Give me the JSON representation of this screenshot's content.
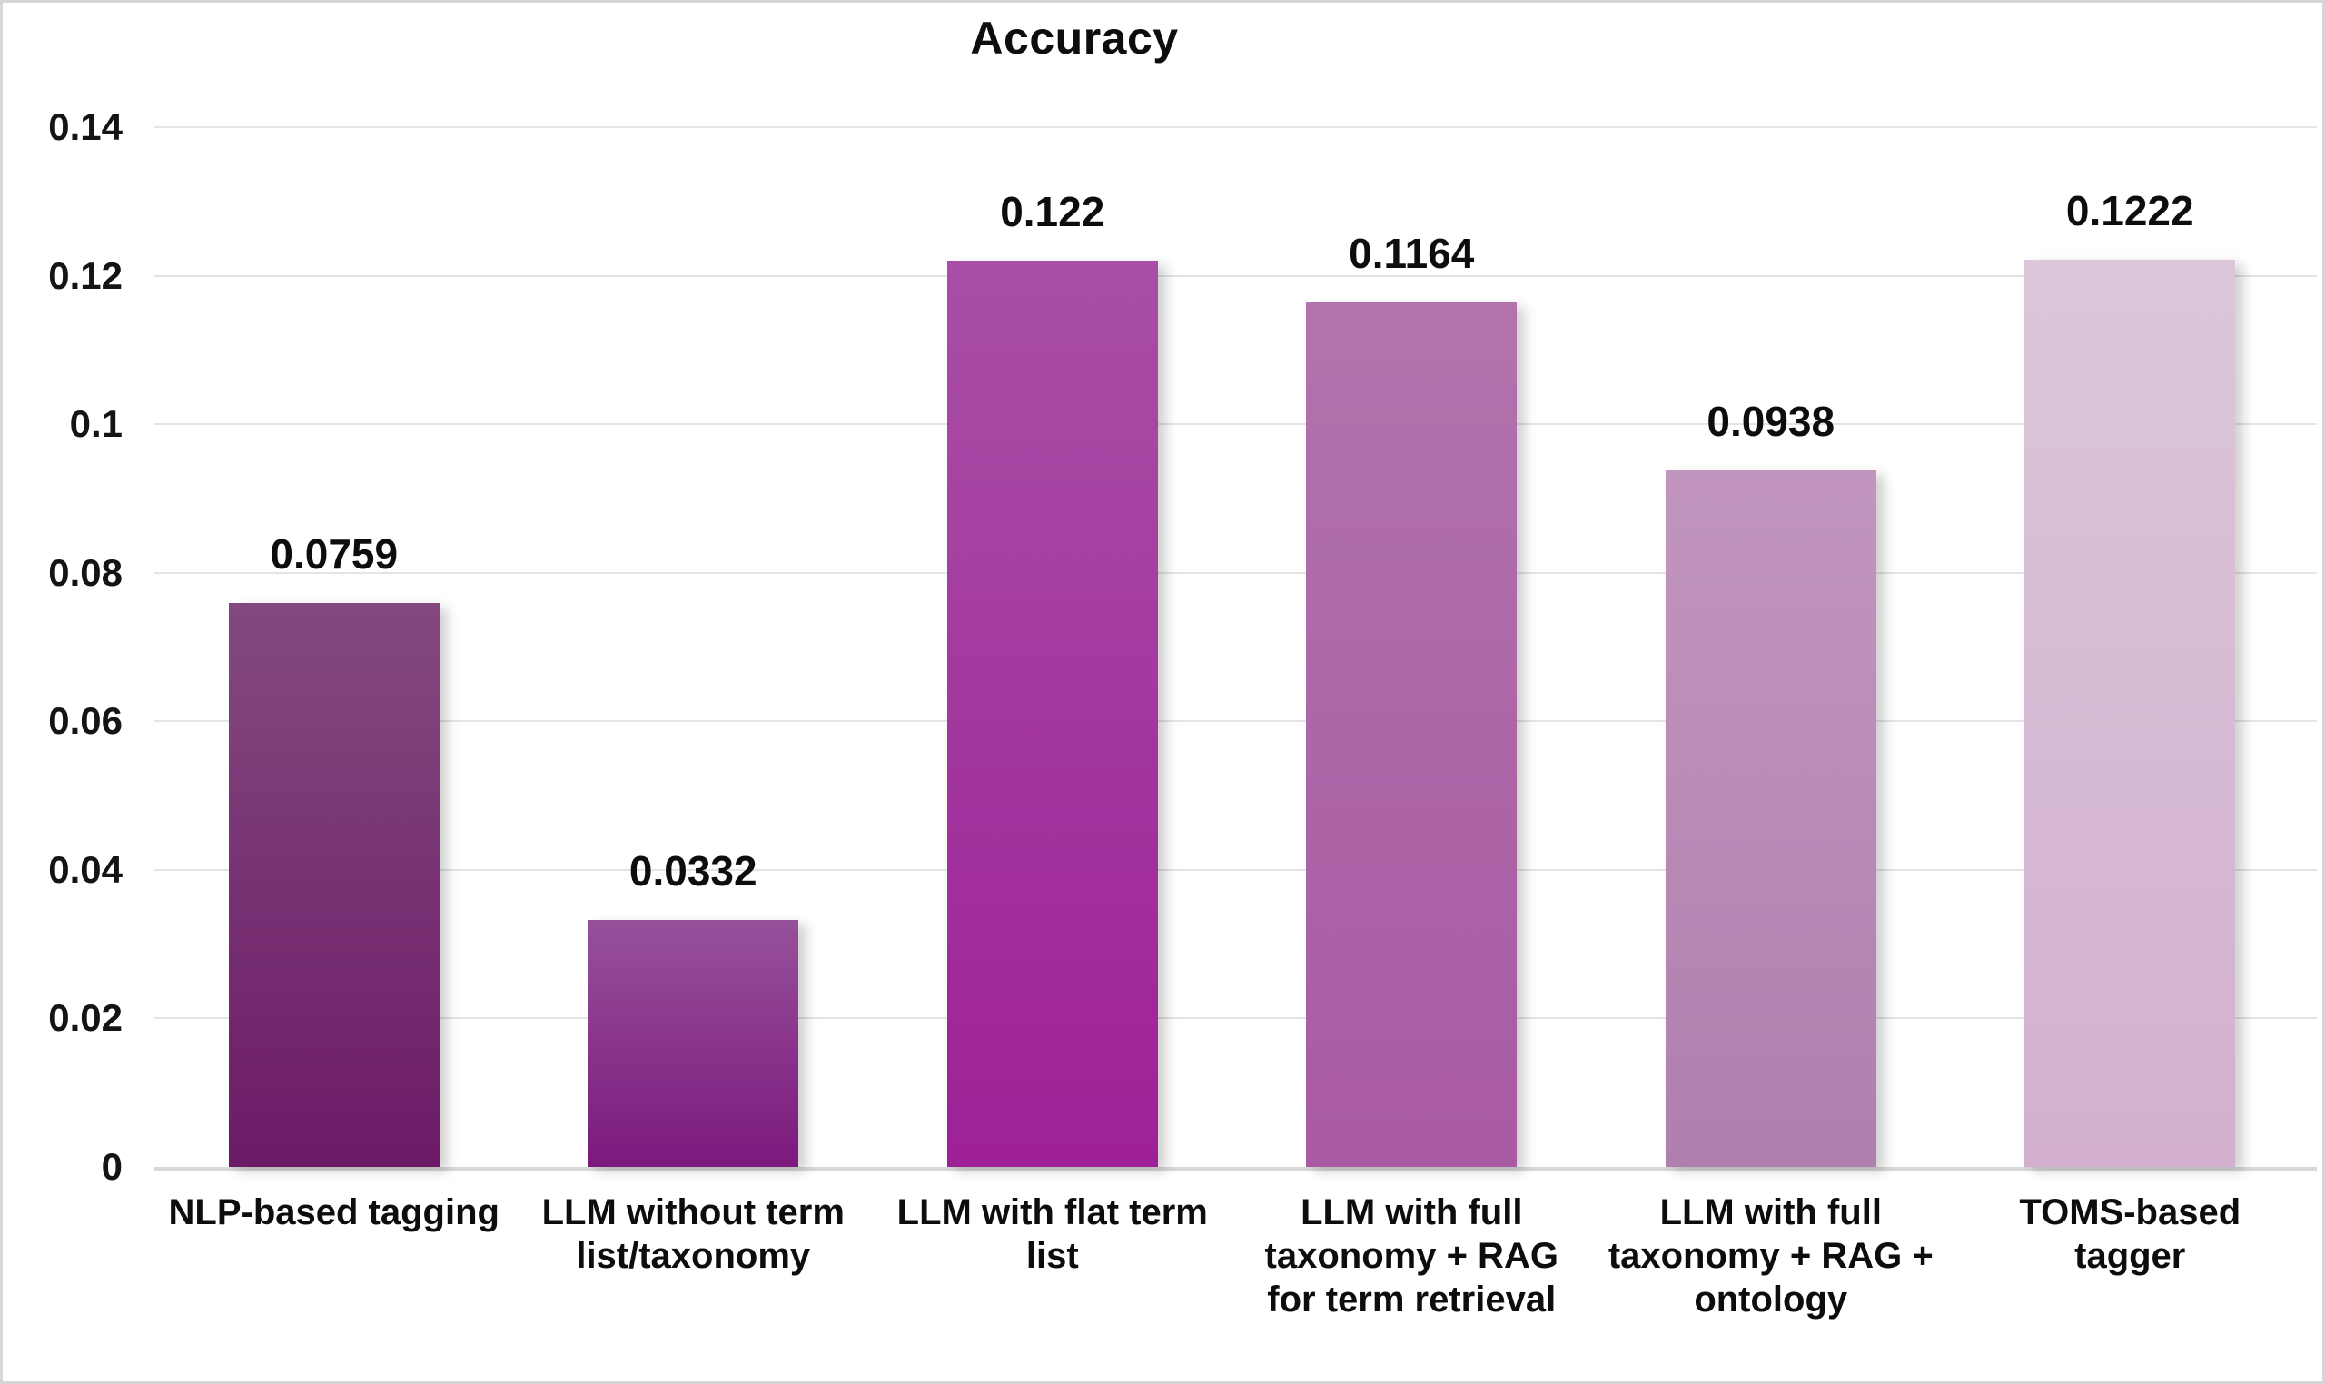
{
  "title": "Accuracy",
  "chart_data": {
    "type": "bar",
    "title": "Accuracy",
    "categories": [
      "NLP-based tagging",
      "LLM without term list/taxonomy",
      "LLM with flat term list",
      "LLM with full taxonomy + RAG for term retrieval",
      "LLM with full taxonomy + RAG + ontology",
      "TOMS-based tagger"
    ],
    "label_lines": [
      [
        "NLP-based tagging"
      ],
      [
        "LLM without term",
        "list/taxonomy"
      ],
      [
        "LLM with flat term",
        "list"
      ],
      [
        "LLM with full",
        "taxonomy + RAG",
        "for term retrieval"
      ],
      [
        "LLM with full",
        "taxonomy + RAG +",
        "ontology"
      ],
      [
        "TOMS-based",
        "tagger"
      ]
    ],
    "values": [
      0.0759,
      0.0332,
      0.122,
      0.1164,
      0.0938,
      0.1222
    ],
    "data_labels": [
      "0.0759",
      "0.0332",
      "0.122",
      "0.1164",
      "0.0938",
      "0.1222"
    ],
    "ylim": [
      0,
      0.14
    ],
    "yticks": [
      0,
      0.02,
      0.04,
      0.06,
      0.08,
      0.1,
      0.12,
      0.14
    ],
    "ytick_labels": [
      "0",
      "0.02",
      "0.04",
      "0.06",
      "0.08",
      "0.1",
      "0.12",
      "0.14"
    ],
    "xlabel": "",
    "ylabel": "",
    "grid": true,
    "legend": false,
    "bar_gradients": [
      {
        "top": "#83497F",
        "bottom": "#6C1B67"
      },
      {
        "top": "#96519B",
        "bottom": "#7C197D"
      },
      {
        "top": "#A94FA6",
        "bottom": "#9E2097"
      },
      {
        "top": "#B273AE",
        "bottom": "#A85AA2"
      },
      {
        "top": "#C295BE",
        "bottom": "#B07FAE"
      },
      {
        "top": "#DCC6D9",
        "bottom": "#D2B0CE"
      }
    ],
    "colors": {
      "gridline": "#e4e4e4",
      "baseline": "#d8d8d8",
      "text": "#0d0d0d",
      "background": "#ffffff",
      "frame_border": "#d6d6d6"
    }
  }
}
